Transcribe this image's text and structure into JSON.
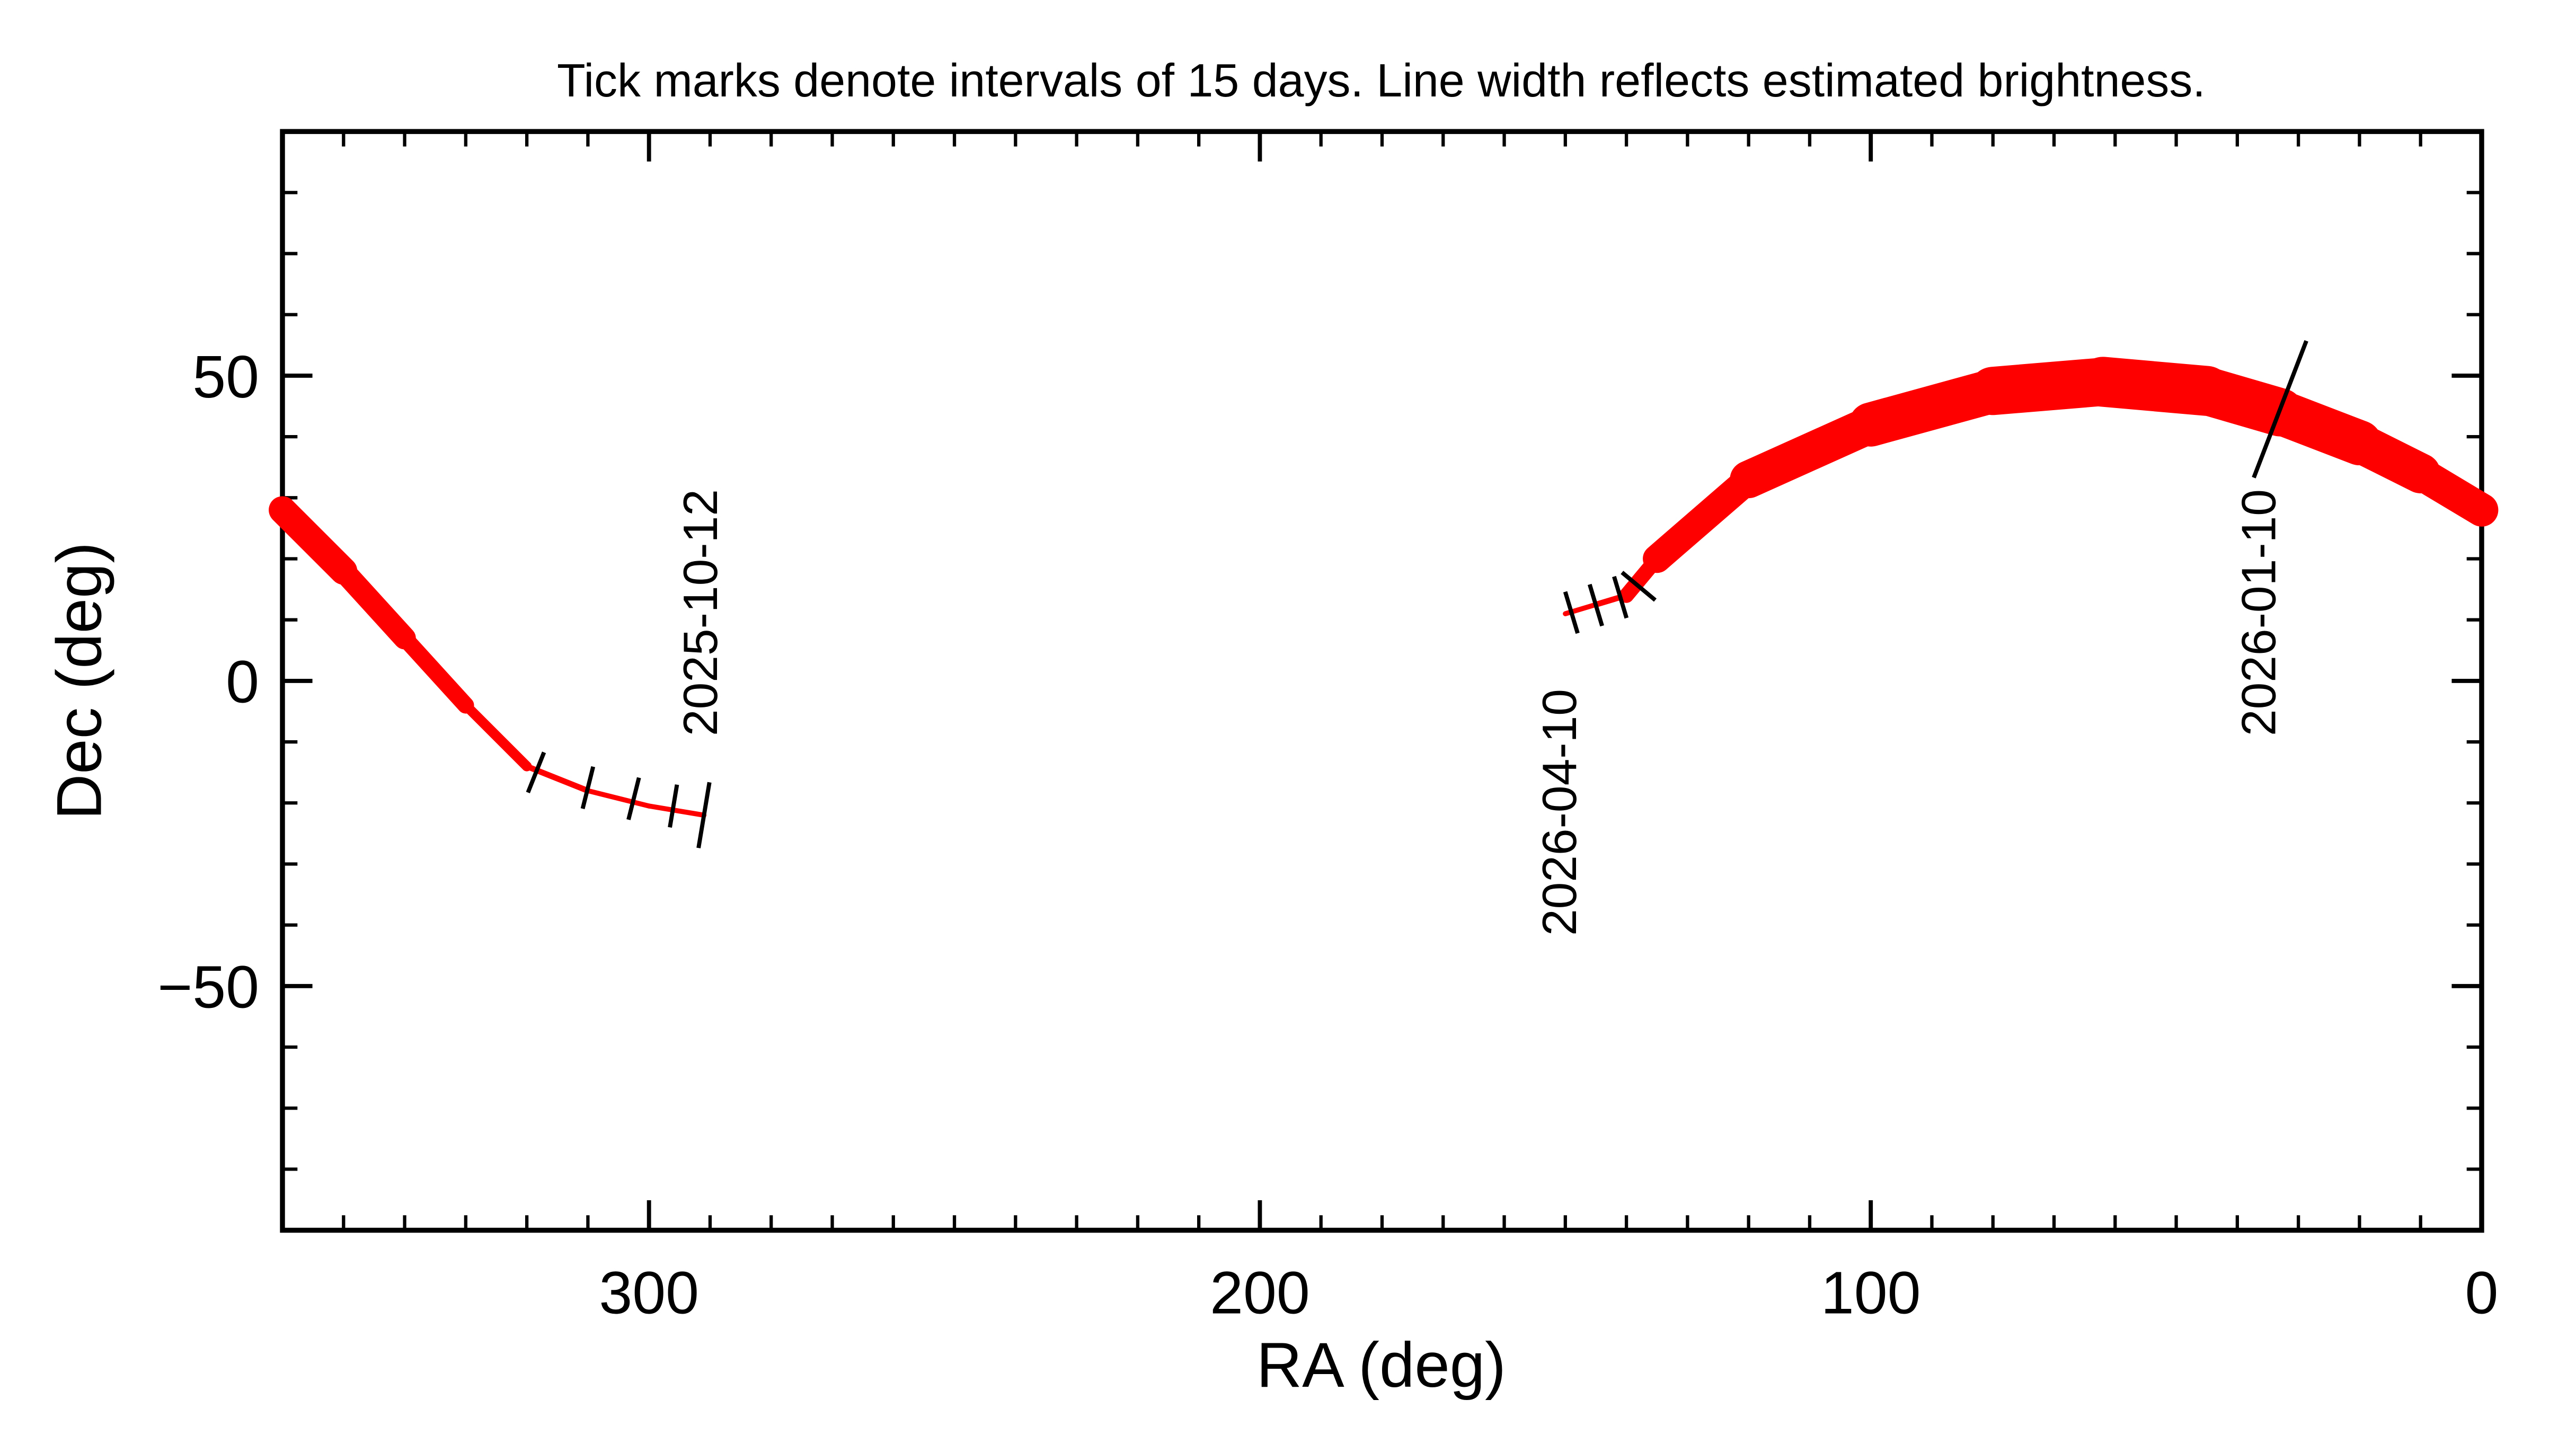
{
  "chart_data": {
    "type": "line",
    "title": "Tick marks denote intervals of 15 days.  Line width reflects estimated brightness.",
    "x_label": "RA (deg)",
    "y_label": "Dec (deg)",
    "xlim": [
      360,
      0
    ],
    "ylim": [
      -90,
      90
    ],
    "xticks": [
      300,
      200,
      100,
      0
    ],
    "yticks": [
      {
        "value": -50,
        "label": "−50"
      },
      0,
      50
    ],
    "xminorticks": [
      350,
      340,
      330,
      320,
      310,
      290,
      280,
      270,
      260,
      250,
      240,
      230,
      220,
      210,
      190,
      180,
      170,
      160,
      150,
      140,
      130,
      120,
      110,
      90,
      80,
      70,
      60,
      50,
      40,
      30,
      20,
      10
    ],
    "yminorticks": [
      -80,
      -70,
      -60,
      -40,
      -30,
      -20,
      -10,
      10,
      20,
      30,
      40,
      60,
      70,
      80
    ],
    "grid": false,
    "series": [
      {
        "color": "#ff0000",
        "x": [
          291,
          300,
          310,
          320,
          330,
          340,
          350,
          360,
          null,
          0,
          10,
          20,
          33,
          45,
          62,
          80,
          100,
          120,
          135,
          140,
          145,
          150
        ],
        "values": [
          -22,
          -20.5,
          -18,
          -14,
          -4,
          7,
          18,
          28,
          null,
          28,
          34,
          39,
          44,
          47.5,
          49,
          47.5,
          42,
          33,
          20,
          14,
          12.5,
          11
        ],
        "widths": [
          3,
          3,
          3,
          4,
          8,
          12,
          15,
          18,
          null,
          18,
          22,
          26,
          28,
          30,
          30,
          28,
          25,
          20,
          14,
          4,
          3,
          3
        ]
      }
    ],
    "time_ticks": {
      "ra": [
        318.5,
        310,
        302.5,
        296,
        291,
        33,
        149,
        145,
        141,
        138
      ],
      "dec": [
        -15,
        -17.5,
        -19.3,
        -20.5,
        -22,
        44.5,
        11.2,
        12.4,
        13.7,
        15.5
      ]
    },
    "annotations": [
      "2025-10-12",
      "2026-01-10",
      "2026-04-10"
    ]
  }
}
